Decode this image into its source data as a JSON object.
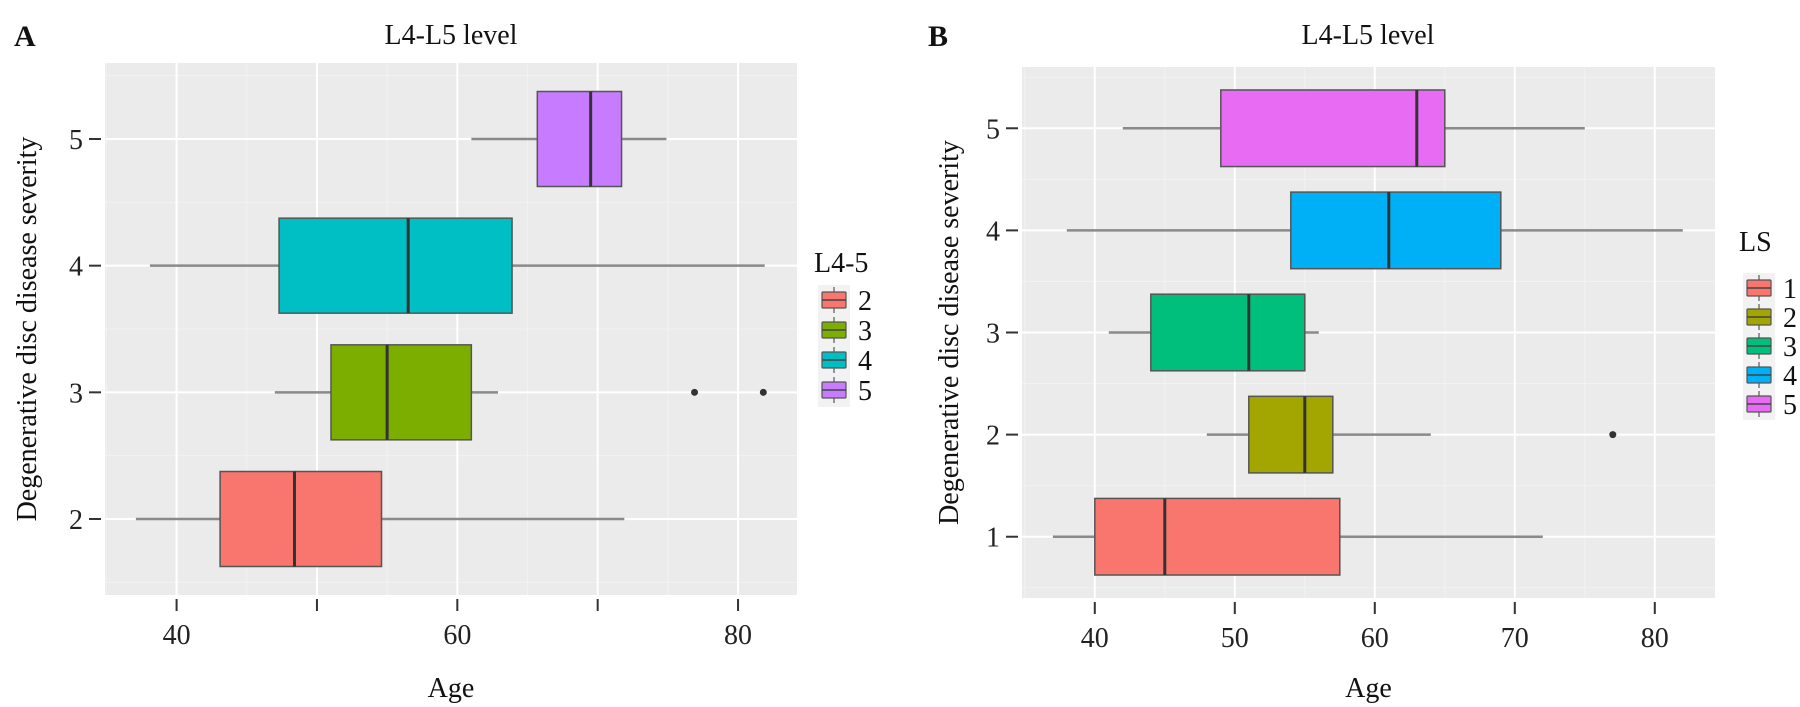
{
  "chart_data": [
    {
      "type": "boxplot",
      "panel_label": "A",
      "title": "L4-L5 level",
      "xlabel": "Age",
      "ylabel": "Degenerative disc disease severity",
      "orientation": "horizontal",
      "xlim": [
        34.9,
        84.2
      ],
      "ylim": [
        1.4,
        5.6
      ],
      "x_ticks": [
        40,
        50,
        60,
        70,
        80
      ],
      "x_tick_labels": [
        "40",
        "",
        "60",
        "",
        "80"
      ],
      "y_ticks": [
        2,
        3,
        4,
        5
      ],
      "y_tick_labels": [
        "2",
        "3",
        "4",
        "5"
      ],
      "grid": true,
      "legend": {
        "title": "L4-5",
        "position": "right",
        "entries": [
          "2",
          "3",
          "4",
          "5"
        ]
      },
      "series": [
        {
          "name": "2",
          "y": 2,
          "color": "#F8766D",
          "whisker_low": 37.1,
          "q1": 43.1,
          "median": 48.4,
          "q3": 54.6,
          "whisker_high": 71.9,
          "outliers": []
        },
        {
          "name": "3",
          "y": 3,
          "color": "#7CAE00",
          "whisker_low": 47.0,
          "q1": 51.0,
          "median": 55.0,
          "q3": 61.0,
          "whisker_high": 62.9,
          "outliers": [
            76.9,
            81.8
          ]
        },
        {
          "name": "4",
          "y": 4,
          "color": "#00BFC4",
          "whisker_low": 38.1,
          "q1": 47.3,
          "median": 56.5,
          "q3": 63.9,
          "whisker_high": 81.9,
          "outliers": []
        },
        {
          "name": "5",
          "y": 5,
          "color": "#C77CFF",
          "whisker_low": 61.0,
          "q1": 65.7,
          "median": 69.5,
          "q3": 71.7,
          "whisker_high": 74.9,
          "outliers": []
        }
      ]
    },
    {
      "type": "boxplot",
      "panel_label": "B",
      "title": "L4-L5 level",
      "xlabel": "Age",
      "ylabel": "Degenerative disc disease severity",
      "orientation": "horizontal",
      "xlim": [
        34.8,
        84.3
      ],
      "ylim": [
        0.4,
        5.6
      ],
      "x_ticks": [
        40,
        50,
        60,
        70,
        80
      ],
      "x_tick_labels": [
        "40",
        "50",
        "60",
        "70",
        "80"
      ],
      "y_ticks": [
        1,
        2,
        3,
        4,
        5
      ],
      "y_tick_labels": [
        "1",
        "2",
        "3",
        "4",
        "5"
      ],
      "grid": true,
      "legend": {
        "title": "LS",
        "position": "right",
        "entries": [
          "1",
          "2",
          "3",
          "4",
          "5"
        ]
      },
      "series": [
        {
          "name": "1",
          "y": 1,
          "color": "#F8766D",
          "whisker_low": 37.0,
          "q1": 40.0,
          "median": 45.0,
          "q3": 57.5,
          "whisker_high": 72.0,
          "outliers": []
        },
        {
          "name": "2",
          "y": 2,
          "color": "#A3A500",
          "whisker_low": 48.0,
          "q1": 51.0,
          "median": 55.0,
          "q3": 57.0,
          "whisker_high": 64.0,
          "outliers": [
            77.0
          ]
        },
        {
          "name": "3",
          "y": 3,
          "color": "#00BF7D",
          "whisker_low": 41.0,
          "q1": 44.0,
          "median": 51.0,
          "q3": 55.0,
          "whisker_high": 56.0,
          "outliers": []
        },
        {
          "name": "4",
          "y": 4,
          "color": "#00B0F6",
          "whisker_low": 38.0,
          "q1": 54.0,
          "median": 61.0,
          "q3": 69.0,
          "whisker_high": 82.0,
          "outliers": []
        },
        {
          "name": "5",
          "y": 5,
          "color": "#E76BF3",
          "whisker_low": 42.0,
          "q1": 49.0,
          "median": 63.0,
          "q3": 65.0,
          "whisker_high": 75.0,
          "outliers": []
        }
      ]
    }
  ]
}
